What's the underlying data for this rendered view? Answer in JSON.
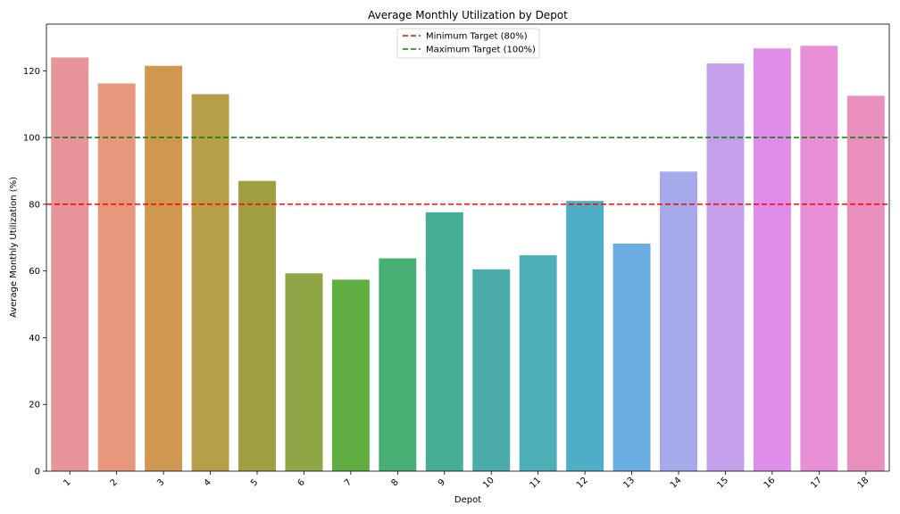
{
  "chart_data": {
    "type": "bar",
    "title": "Average Monthly Utilization by Depot",
    "xlabel": "Depot",
    "ylabel": "Average Monthly Utilization (%)",
    "categories": [
      "1",
      "2",
      "3",
      "4",
      "5",
      "6",
      "7",
      "8",
      "9",
      "10",
      "11",
      "12",
      "13",
      "14",
      "15",
      "16",
      "17",
      "18"
    ],
    "values": [
      124,
      116.2,
      121.5,
      113,
      87,
      59.3,
      57.4,
      63.8,
      77.6,
      60.5,
      64.7,
      81,
      68.2,
      89.8,
      122.2,
      126.7,
      127.5,
      112.5
    ],
    "colors": [
      "#e8949b",
      "#e7977c",
      "#cf9850",
      "#b79f49",
      "#a29f43",
      "#8fa546",
      "#60ae41",
      "#49b075",
      "#47ad96",
      "#4aaba9",
      "#4caeb6",
      "#4eaec7",
      "#6aade0",
      "#a5aaea",
      "#c5a0ea",
      "#de8de8",
      "#e88fd8",
      "#e98fbd"
    ],
    "ylim": [
      0,
      134
    ],
    "yticks": [
      0,
      20,
      40,
      60,
      80,
      100,
      120
    ],
    "reference_lines": [
      {
        "name": "Minimum Target (80%)",
        "value": 80,
        "color": "#ff0000"
      },
      {
        "name": "Maximum Target (100%)",
        "value": 100,
        "color": "#008000"
      }
    ],
    "legend": "upper-center",
    "grid": false
  }
}
